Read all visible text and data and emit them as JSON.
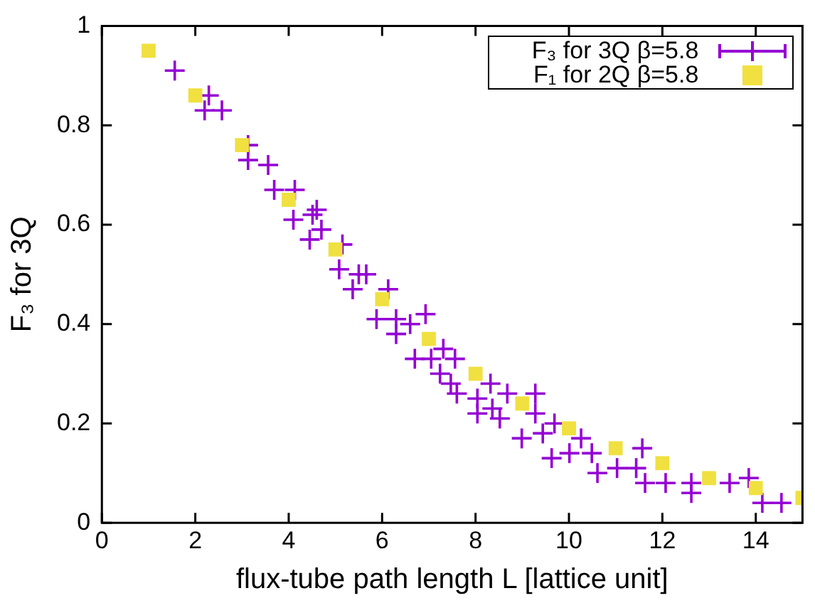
{
  "chart_data": {
    "type": "scatter",
    "xlabel": "flux-tube path length L [lattice unit]",
    "ylabel": "F₃ for 3Q",
    "xlim": [
      0,
      15
    ],
    "ylim": [
      0,
      1
    ],
    "xticks": [
      0,
      2,
      4,
      6,
      8,
      10,
      12,
      14
    ],
    "yticks": [
      0,
      0.2,
      0.4,
      0.6,
      0.8,
      1
    ],
    "grid": false,
    "legend": "top right",
    "series": [
      {
        "name": "F₃ for 3Q β=5.8",
        "color": "#9400d3",
        "marker": "cross",
        "x": [
          1.56,
          2.29,
          2.2,
          2.57,
          3.13,
          3.13,
          3.56,
          3.69,
          4.13,
          4.6,
          4.51,
          4.1,
          4.7,
          4.45,
          5.15,
          5.08,
          5.5,
          5.37,
          6.13,
          5.66,
          5.88,
          6.3,
          6.6,
          6.93,
          6.3,
          7.31,
          6.7,
          7.05,
          7.56,
          7.24,
          7.47,
          7.6,
          8.32,
          8.04,
          8.04,
          8.36,
          8.52,
          8.68,
          9.28,
          9.28,
          9.69,
          8.99,
          9.44,
          10.26,
          9.63,
          10.01,
          10.49,
          10.61,
          11.03,
          11.44,
          11.57,
          11.63,
          12.07,
          12.62,
          12.62,
          13.44,
          13.85,
          14.14,
          14.55
        ],
        "values": [
          0.91,
          0.86,
          0.83,
          0.83,
          0.76,
          0.73,
          0.72,
          0.67,
          0.67,
          0.63,
          0.62,
          0.61,
          0.59,
          0.57,
          0.56,
          0.51,
          0.5,
          0.47,
          0.47,
          0.5,
          0.41,
          0.41,
          0.4,
          0.42,
          0.38,
          0.35,
          0.33,
          0.33,
          0.33,
          0.3,
          0.28,
          0.26,
          0.28,
          0.25,
          0.22,
          0.23,
          0.21,
          0.26,
          0.26,
          0.22,
          0.2,
          0.17,
          0.18,
          0.17,
          0.13,
          0.14,
          0.14,
          0.1,
          0.11,
          0.11,
          0.15,
          0.08,
          0.08,
          0.08,
          0.06,
          0.08,
          0.09,
          0.04,
          0.04
        ]
      },
      {
        "name": "F₁ for 2Q β=5.8",
        "color": "#f0e040",
        "marker": "square",
        "x": [
          1,
          2,
          3,
          4,
          5,
          6,
          7,
          8,
          9,
          10,
          11,
          12,
          13,
          14,
          15
        ],
        "values": [
          0.95,
          0.86,
          0.76,
          0.65,
          0.55,
          0.45,
          0.37,
          0.3,
          0.24,
          0.19,
          0.15,
          0.12,
          0.09,
          0.07,
          0.05
        ]
      }
    ]
  }
}
